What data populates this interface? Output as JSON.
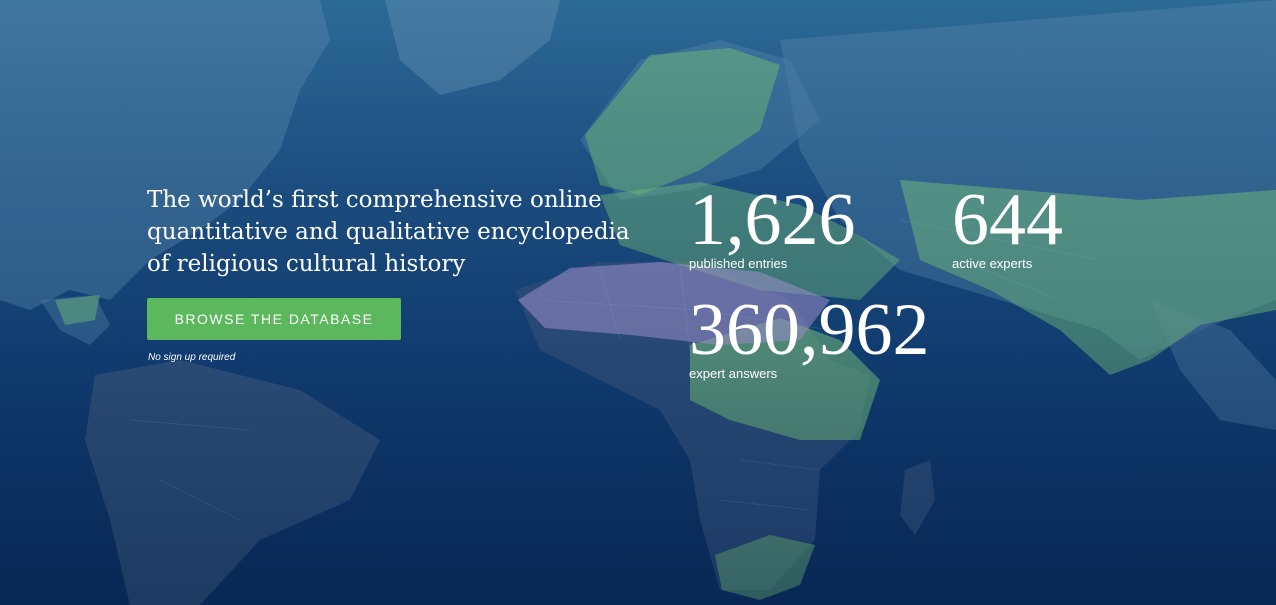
{
  "hero": {
    "headline": "The world’s first comprehensive online quantitative and qualitative encyclopedia of religious cultural history",
    "cta_label": "BROWSE THE DATABASE",
    "cta_note": "No sign up required",
    "background_icon": "world-map",
    "colors": {
      "accent_green": "#5cb85c",
      "highlight_purple": "#b39ddb",
      "background_navy": "#0e2f5c"
    }
  },
  "stats": [
    {
      "value": "1,626",
      "label": "published entries"
    },
    {
      "value": "644",
      "label": "active experts"
    },
    {
      "value": "360,962",
      "label": "expert answers"
    }
  ]
}
